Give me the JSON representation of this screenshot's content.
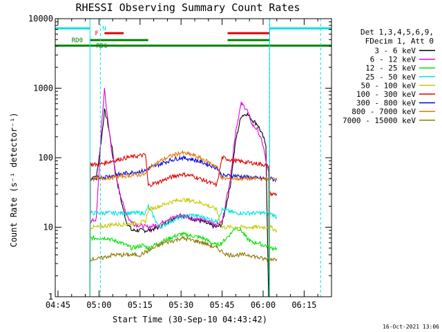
{
  "chart_data": {
    "type": "line",
    "title": "RHESSI Observing Summary Count Rates",
    "xlabel": "Start Time (30-Sep-10 04:43:42)",
    "ylabel": "Count Rate (s⁻¹ detector⁻¹)",
    "yscale": "log",
    "ylim": [
      1,
      10000
    ],
    "xlim_minutes": [
      -16,
      85
    ],
    "x_ticks": [
      {
        "label": "04:45",
        "min": -15
      },
      {
        "label": "05:00",
        "min": 0
      },
      {
        "label": "05:15",
        "min": 15
      },
      {
        "label": "05:30",
        "min": 30
      },
      {
        "label": "05:45",
        "min": 45
      },
      {
        "label": "06:00",
        "min": 60
      },
      {
        "label": "06:15",
        "min": 75
      }
    ],
    "y_ticks": [
      {
        "label": "1",
        "value": 1
      },
      {
        "label": "10",
        "value": 10
      },
      {
        "label": "100",
        "value": 100
      },
      {
        "label": "1000",
        "value": 1000
      },
      {
        "label": "10000",
        "value": 10000
      }
    ],
    "x_unit_note": "x values are minutes relative to 05:00",
    "legend_header": [
      "Det 1,3,4,5,6,9,",
      "FDecim 1, Att 0"
    ],
    "series": [
      {
        "name": "3 - 6 keV",
        "color": "#000000",
        "x": [
          -3.3,
          -3.2,
          -1,
          1,
          2,
          3,
          5,
          6,
          8,
          10,
          12,
          18,
          22,
          25,
          28,
          30,
          32,
          35,
          38,
          40,
          43,
          45,
          48,
          50,
          52,
          54,
          56,
          58,
          60,
          61,
          62,
          62.3,
          62.4
        ],
        "y": [
          1.3,
          50,
          50,
          200,
          480,
          350,
          120,
          60,
          25,
          12,
          9,
          9,
          10,
          12,
          14,
          15,
          14,
          13,
          12,
          11,
          10,
          11,
          40,
          180,
          400,
          430,
          350,
          300,
          200,
          150,
          1,
          1,
          1
        ]
      },
      {
        "name": "6 - 12 keV",
        "color": "#e100e1",
        "x": [
          -3.3,
          -3.2,
          -1,
          1,
          2,
          3,
          5,
          7,
          9,
          11,
          13,
          18,
          22,
          25,
          28,
          30,
          33,
          36,
          40,
          43,
          45,
          48,
          50,
          52,
          54,
          56,
          58,
          60,
          61,
          62,
          62.3
        ],
        "y": [
          12,
          12,
          13,
          300,
          1000,
          400,
          100,
          40,
          20,
          13,
          11,
          10,
          11,
          13,
          14,
          15,
          14,
          13,
          12,
          11,
          12,
          50,
          250,
          600,
          500,
          300,
          250,
          150,
          90,
          60,
          12
        ]
      },
      {
        "name": "12 - 25 keV",
        "color": "#00e100",
        "x": [
          -3.3,
          -3.2,
          -1,
          3,
          5,
          8,
          12,
          16,
          18,
          22,
          26,
          30,
          34,
          38,
          41,
          43,
          45,
          48,
          50,
          52,
          54,
          56,
          58,
          60,
          61,
          62,
          62.3,
          62.4,
          65
        ],
        "y": [
          1,
          7,
          7,
          7,
          6.5,
          6,
          5,
          5.5,
          5,
          6,
          7,
          8,
          7.5,
          7,
          6,
          5.5,
          6,
          8,
          10,
          9,
          7,
          6,
          6,
          5.5,
          5.5,
          5,
          1,
          5,
          5
        ]
      },
      {
        "name": "25 - 50 keV",
        "color": "#00e1e1",
        "x": [
          -3.3,
          -3.2,
          0,
          5,
          10,
          17,
          18,
          22,
          26,
          30,
          34,
          38,
          43,
          45,
          50,
          55,
          60,
          62,
          62.3,
          62.4,
          65
        ],
        "y": [
          1,
          16,
          16,
          16,
          16,
          16,
          20,
          10,
          12,
          14,
          15,
          14,
          12,
          18,
          16,
          16,
          16,
          16,
          1,
          16,
          14
        ]
      },
      {
        "name": "50 - 100 keV",
        "color": "#c8c800",
        "x": [
          -3.3,
          -3.2,
          0,
          5,
          10,
          17,
          18,
          22,
          26,
          30,
          34,
          38,
          43,
          45,
          50,
          55,
          60,
          62,
          62.3,
          62.4,
          65
        ],
        "y": [
          1,
          10,
          10,
          11,
          11,
          12,
          18,
          20,
          23,
          25,
          24,
          22,
          18,
          10,
          10,
          10,
          10,
          10,
          1,
          10,
          9
        ]
      },
      {
        "name": "100 - 300 keV",
        "color": "#e10000",
        "x": [
          -3.3,
          -3.2,
          0,
          5,
          10,
          17,
          18,
          22,
          26,
          30,
          34,
          38,
          43,
          45,
          50,
          55,
          60,
          62,
          62.3,
          62.4,
          65
        ],
        "y": [
          1,
          80,
          80,
          90,
          100,
          110,
          40,
          45,
          52,
          58,
          55,
          48,
          40,
          100,
          90,
          85,
          80,
          75,
          1,
          30,
          30
        ]
      },
      {
        "name": "300 - 800 keV",
        "color": "#0000e1",
        "x": [
          -3.3,
          -3.2,
          0,
          5,
          10,
          17,
          18,
          22,
          26,
          30,
          34,
          38,
          43,
          45,
          50,
          55,
          60,
          62,
          62.3,
          62.4,
          65
        ],
        "y": [
          1,
          50,
          52,
          55,
          60,
          65,
          70,
          80,
          92,
          100,
          95,
          85,
          72,
          55,
          55,
          52,
          50,
          50,
          1,
          50,
          48
        ]
      },
      {
        "name": "800 - 7000 keV",
        "color": "#e17800",
        "x": [
          -3.3,
          -3.2,
          0,
          5,
          10,
          17,
          18,
          22,
          26,
          30,
          34,
          38,
          43,
          45,
          50,
          55,
          60,
          62,
          62.3,
          62.4,
          65
        ],
        "y": [
          1,
          50,
          50,
          52,
          55,
          58,
          70,
          88,
          105,
          118,
          110,
          95,
          75,
          50,
          50,
          50,
          50,
          50,
          1,
          50,
          50
        ]
      },
      {
        "name": "7000 - 15000 keV",
        "color": "#8c7800",
        "x": [
          -3.3,
          -3.2,
          0,
          5,
          10,
          15,
          20,
          24,
          28,
          30,
          34,
          38,
          43,
          47,
          50,
          55,
          60,
          62,
          62.3,
          62.4,
          65
        ],
        "y": [
          1,
          3.5,
          3.5,
          4,
          4,
          4,
          5,
          6,
          6.5,
          7,
          6.5,
          6,
          5,
          4,
          4,
          4,
          3.5,
          3.5,
          1,
          3.5,
          3.5
        ]
      }
    ],
    "annotations": {
      "night_bands": [
        {
          "label": "N",
          "color": "#00e1e1",
          "segments": [
            [
              -16,
              -3.3
            ],
            [
              62.4,
              85
            ]
          ]
        }
      ],
      "flare_bands": [
        {
          "label": "F",
          "color": "#e10000",
          "segments": [
            [
              2,
              9
            ],
            [
              47,
              62.4
            ]
          ]
        }
      ],
      "saa_bands": [
        {
          "label": "",
          "color": "#008000",
          "segments": [
            [
              -3.3,
              18
            ],
            [
              47,
              62.4
            ]
          ]
        }
      ],
      "attenuator_bands": [
        {
          "label": "RD0",
          "color": "#008000",
          "segments": [
            [
              -16,
              18
            ],
            [
              18,
              45
            ],
            [
              45,
              85
            ]
          ]
        },
        {
          "label": "RD6",
          "color": "#008000",
          "segments": []
        }
      ],
      "dashed_markers_minutes": [
        0.5,
        62.3,
        81
      ]
    },
    "footer_date": "16-Oct-2021 13:06"
  }
}
